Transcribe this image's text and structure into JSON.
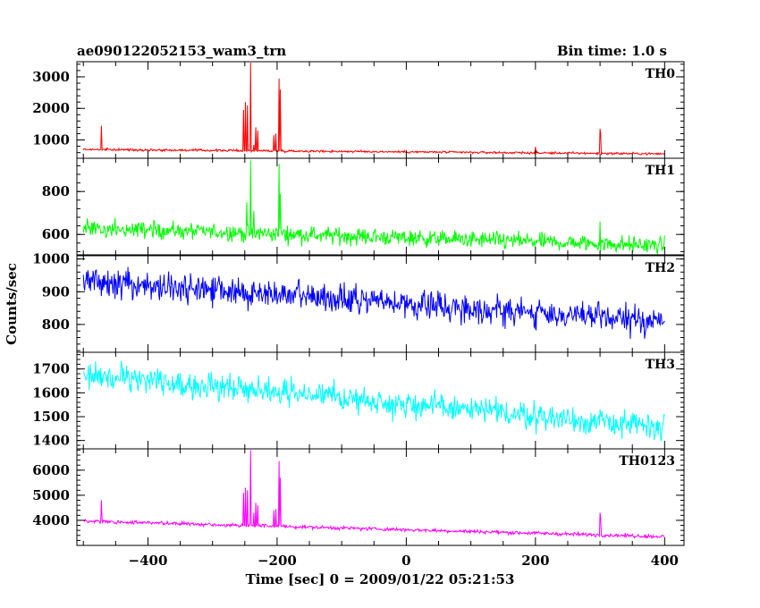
{
  "chart_data": {
    "type": "line",
    "title": "ae090122052153_wam3_trn",
    "bin_time": "Bin time: 1.0 s",
    "xlabel": "Time [sec] 0 = 2009/01/22 05:21:53",
    "ylabel": "Counts/sec",
    "xlim": [
      -510,
      430
    ],
    "x_ticks": [
      -400,
      -200,
      0,
      200,
      400
    ],
    "x_tick_labels": [
      "−400",
      "−200",
      "0",
      "200",
      "400"
    ],
    "grid": false,
    "panels": [
      {
        "name": "TH0",
        "color": "#ff0000",
        "ylim": [
          420,
          3480
        ],
        "y_ticks": [
          1000,
          2000,
          3000
        ],
        "y_tick_labels": [
          "1000",
          "2000",
          "3000"
        ],
        "baseline_start": 700,
        "baseline_end": 560,
        "noise": 35,
        "spikes": [
          [
            -472,
            1450
          ],
          [
            -252,
            1950
          ],
          [
            -249,
            2200
          ],
          [
            -246,
            2100
          ],
          [
            -241,
            3450
          ],
          [
            -236,
            850
          ],
          [
            -233,
            1400
          ],
          [
            -230,
            1300
          ],
          [
            -205,
            1150
          ],
          [
            -202,
            1200
          ],
          [
            -197,
            2950
          ],
          [
            -195,
            2600
          ],
          [
            200,
            780
          ],
          [
            300,
            1350
          ],
          [
            301,
            1200
          ]
        ]
      },
      {
        "name": "TH1",
        "color": "#00ff00",
        "ylim": [
          505,
          955
        ],
        "y_ticks": [
          600,
          800
        ],
        "y_tick_labels": [
          "600",
          "800"
        ],
        "baseline_start": 630,
        "baseline_end": 548,
        "noise": 38,
        "spikes": [
          [
            -247,
            750
          ],
          [
            -241,
            945
          ],
          [
            -236,
            710
          ],
          [
            -197,
            930
          ],
          [
            -195,
            790
          ],
          [
            300,
            660
          ]
        ]
      },
      {
        "name": "TH2",
        "color": "#0000ff",
        "ylim": [
          715,
          1010
        ],
        "y_ticks": [
          800,
          900,
          1000
        ],
        "y_tick_labels": [
          "800",
          "900",
          "1000"
        ],
        "baseline_start": 932,
        "baseline_end": 808,
        "noise": 42,
        "spikes": []
      },
      {
        "name": "TH3",
        "color": "#00ffff",
        "ylim": [
          1365,
          1770
        ],
        "y_ticks": [
          1400,
          1500,
          1600,
          1700
        ],
        "y_tick_labels": [
          "1400",
          "1500",
          "1600",
          "1700"
        ],
        "baseline_start": 1680,
        "baseline_end": 1452,
        "noise": 55,
        "spikes": []
      },
      {
        "name": "TH0123",
        "color": "#ff00ff",
        "ylim": [
          3000,
          6850
        ],
        "y_ticks": [
          4000,
          5000,
          6000
        ],
        "y_tick_labels": [
          "4000",
          "5000",
          "6000"
        ],
        "baseline_start": 3970,
        "baseline_end": 3350,
        "noise": 70,
        "spikes": [
          [
            -472,
            4800
          ],
          [
            -252,
            5100
          ],
          [
            -249,
            5300
          ],
          [
            -246,
            5200
          ],
          [
            -241,
            6800
          ],
          [
            -236,
            4300
          ],
          [
            -233,
            4700
          ],
          [
            -230,
            4600
          ],
          [
            -205,
            4400
          ],
          [
            -202,
            4450
          ],
          [
            -197,
            6350
          ],
          [
            -195,
            5700
          ],
          [
            300,
            4300
          ],
          [
            301,
            4100
          ]
        ]
      }
    ]
  }
}
